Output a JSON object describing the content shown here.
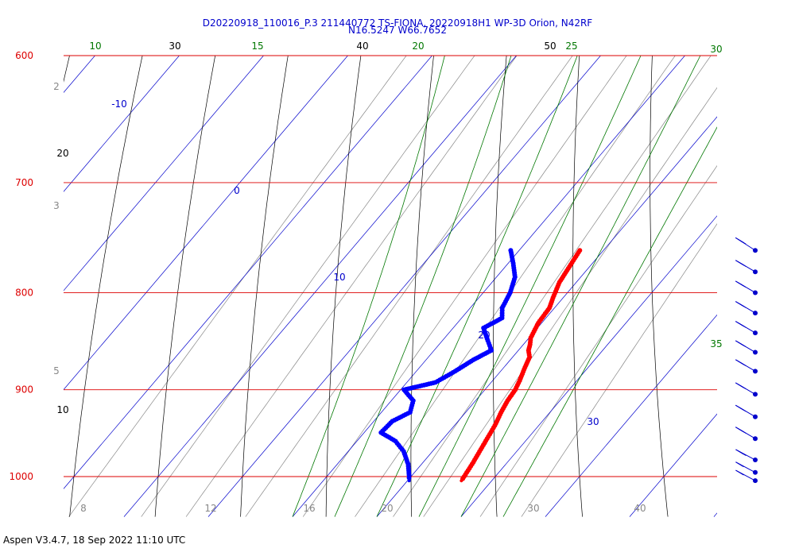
{
  "chart_data": {
    "type": "skew-t",
    "title_line1": "D20220918_110016_P.3 211440772 TS-FIONA, 20220918H1 WP-3D Orion, N42RF",
    "title_line2": "N16.5247 W66.7652",
    "footer": "Aspen V3.4.7, 18 Sep 2022  11:10 UTC",
    "pressure_levels": [
      {
        "p": 600,
        "label": "600"
      },
      {
        "p": 700,
        "label": "700"
      },
      {
        "p": 800,
        "label": "800"
      },
      {
        "p": 900,
        "label": "900"
      },
      {
        "p": 1000,
        "label": "1000"
      }
    ],
    "isotherm_labels": [
      "-10",
      "0",
      "10",
      "20",
      "30"
    ],
    "dry_adiabat_labels": [
      "10",
      "20",
      "30",
      "40",
      "50"
    ],
    "moist_adiabat_labels": [
      "10",
      "15",
      "20",
      "25",
      "30",
      "35"
    ],
    "mixing_ratio_labels": [
      "2",
      "3",
      "5",
      "8",
      "12",
      "16",
      "20",
      "30",
      "40"
    ],
    "temperature_profile": [
      {
        "p": 760,
        "t": 17.2
      },
      {
        "p": 775,
        "t": 17.6
      },
      {
        "p": 790,
        "t": 18.0
      },
      {
        "p": 805,
        "t": 18.8
      },
      {
        "p": 815,
        "t": 19.4
      },
      {
        "p": 830,
        "t": 19.6
      },
      {
        "p": 845,
        "t": 20.2
      },
      {
        "p": 852,
        "t": 20.8
      },
      {
        "p": 858,
        "t": 21.2
      },
      {
        "p": 865,
        "t": 22.0
      },
      {
        "p": 878,
        "t": 22.6
      },
      {
        "p": 890,
        "t": 23.2
      },
      {
        "p": 900,
        "t": 23.6
      },
      {
        "p": 912,
        "t": 23.8
      },
      {
        "p": 925,
        "t": 24.2
      },
      {
        "p": 940,
        "t": 24.8
      },
      {
        "p": 955,
        "t": 25.2
      },
      {
        "p": 970,
        "t": 25.6
      },
      {
        "p": 985,
        "t": 26.0
      },
      {
        "p": 995,
        "t": 26.2
      },
      {
        "p": 1005,
        "t": 26.4
      }
    ],
    "dewpoint_profile": [
      {
        "p": 760,
        "td": 9.0
      },
      {
        "p": 772,
        "td": 10.6
      },
      {
        "p": 785,
        "td": 12.2
      },
      {
        "p": 800,
        "td": 13.2
      },
      {
        "p": 815,
        "td": 13.8
      },
      {
        "p": 825,
        "td": 14.8
      },
      {
        "p": 835,
        "td": 13.6
      },
      {
        "p": 848,
        "td": 15.4
      },
      {
        "p": 858,
        "td": 16.8
      },
      {
        "p": 868,
        "td": 15.6
      },
      {
        "p": 880,
        "td": 14.6
      },
      {
        "p": 892,
        "td": 13.4
      },
      {
        "p": 900,
        "td": 10.4
      },
      {
        "p": 912,
        "td": 12.6
      },
      {
        "p": 925,
        "td": 13.4
      },
      {
        "p": 935,
        "td": 12.2
      },
      {
        "p": 948,
        "td": 12.0
      },
      {
        "p": 958,
        "td": 14.6
      },
      {
        "p": 970,
        "td": 16.6
      },
      {
        "p": 985,
        "td": 18.4
      },
      {
        "p": 998,
        "td": 19.6
      },
      {
        "p": 1005,
        "td": 20.2
      }
    ],
    "wind_barbs": [
      {
        "p": 760,
        "speed_kt": 25,
        "dir_deg": 90
      },
      {
        "p": 780,
        "speed_kt": 25,
        "dir_deg": 95
      },
      {
        "p": 800,
        "speed_kt": 25,
        "dir_deg": 95
      },
      {
        "p": 820,
        "speed_kt": 25,
        "dir_deg": 95
      },
      {
        "p": 840,
        "speed_kt": 25,
        "dir_deg": 95
      },
      {
        "p": 860,
        "speed_kt": 25,
        "dir_deg": 95
      },
      {
        "p": 880,
        "speed_kt": 25,
        "dir_deg": 95
      },
      {
        "p": 905,
        "speed_kt": 25,
        "dir_deg": 95
      },
      {
        "p": 930,
        "speed_kt": 25,
        "dir_deg": 95
      },
      {
        "p": 955,
        "speed_kt": 25,
        "dir_deg": 95
      },
      {
        "p": 980,
        "speed_kt": 20,
        "dir_deg": 100
      },
      {
        "p": 995,
        "speed_kt": 15,
        "dir_deg": 100
      },
      {
        "p": 1005,
        "speed_kt": 10,
        "dir_deg": 100
      }
    ],
    "colors": {
      "isobar": "#dd0000",
      "isotherm": "#0000cc",
      "dry_adiabat": "#000000",
      "moist_adiabat": "#007700",
      "mixing_ratio": "#888888",
      "temperature": "#ff0000",
      "dewpoint": "#0000ff",
      "wind": "#0000cc"
    }
  }
}
